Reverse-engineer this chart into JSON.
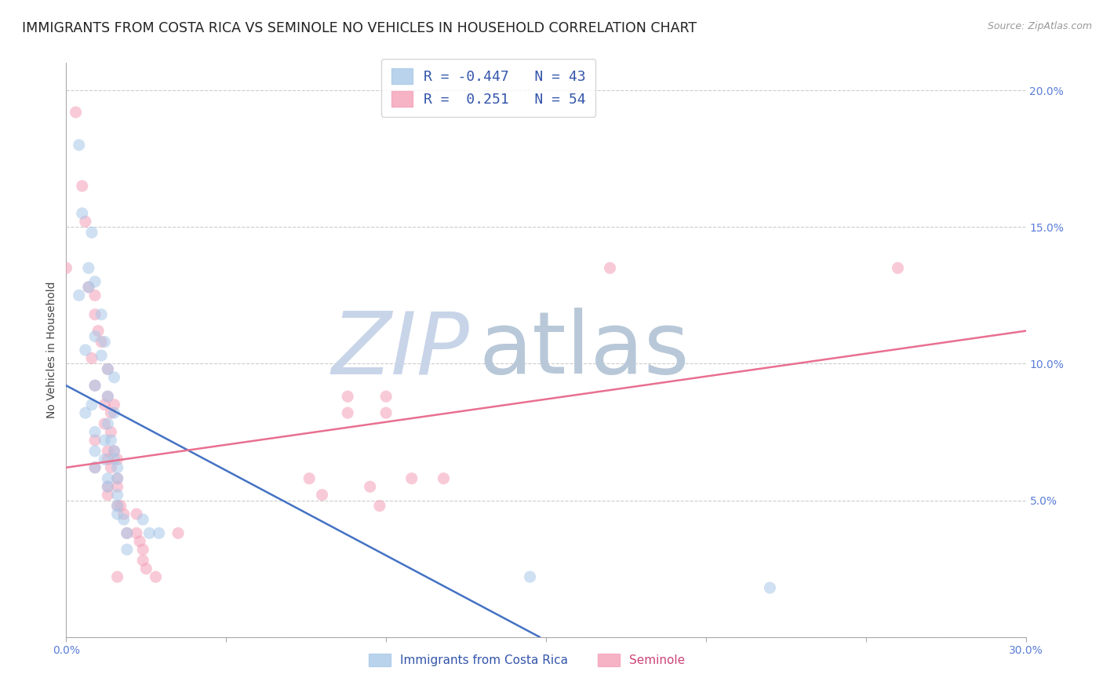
{
  "title": "IMMIGRANTS FROM COSTA RICA VS SEMINOLE NO VEHICLES IN HOUSEHOLD CORRELATION CHART",
  "source": "Source: ZipAtlas.com",
  "ylabel": "No Vehicles in Household",
  "xlim": [
    0.0,
    0.3
  ],
  "ylim": [
    0.0,
    0.21
  ],
  "xticks": [
    0.0,
    0.05,
    0.1,
    0.15,
    0.2,
    0.25,
    0.3
  ],
  "xtick_labels": [
    "0.0%",
    "",
    "",
    "",
    "",
    "",
    "30.0%"
  ],
  "yticks_right": [
    0.0,
    0.05,
    0.1,
    0.15,
    0.2
  ],
  "ytick_right_labels": [
    "",
    "5.0%",
    "10.0%",
    "15.0%",
    "20.0%"
  ],
  "legend_entries": [
    {
      "label": "R = -0.447   N = 43",
      "color": "#a8c8e8"
    },
    {
      "label": "R =  0.251   N = 54",
      "color": "#f4a0b8"
    }
  ],
  "blue_scatter": [
    [
      0.004,
      0.18
    ],
    [
      0.005,
      0.155
    ],
    [
      0.008,
      0.148
    ],
    [
      0.007,
      0.135
    ],
    [
      0.009,
      0.13
    ],
    [
      0.007,
      0.128
    ],
    [
      0.004,
      0.125
    ],
    [
      0.011,
      0.118
    ],
    [
      0.009,
      0.11
    ],
    [
      0.012,
      0.108
    ],
    [
      0.006,
      0.105
    ],
    [
      0.011,
      0.103
    ],
    [
      0.013,
      0.098
    ],
    [
      0.015,
      0.095
    ],
    [
      0.009,
      0.092
    ],
    [
      0.013,
      0.088
    ],
    [
      0.008,
      0.085
    ],
    [
      0.015,
      0.082
    ],
    [
      0.006,
      0.082
    ],
    [
      0.013,
      0.078
    ],
    [
      0.009,
      0.075
    ],
    [
      0.014,
      0.072
    ],
    [
      0.012,
      0.072
    ],
    [
      0.015,
      0.068
    ],
    [
      0.009,
      0.068
    ],
    [
      0.015,
      0.065
    ],
    [
      0.012,
      0.065
    ],
    [
      0.016,
      0.062
    ],
    [
      0.009,
      0.062
    ],
    [
      0.013,
      0.058
    ],
    [
      0.016,
      0.058
    ],
    [
      0.013,
      0.055
    ],
    [
      0.016,
      0.052
    ],
    [
      0.016,
      0.048
    ],
    [
      0.016,
      0.045
    ],
    [
      0.018,
      0.043
    ],
    [
      0.019,
      0.038
    ],
    [
      0.019,
      0.032
    ],
    [
      0.024,
      0.043
    ],
    [
      0.026,
      0.038
    ],
    [
      0.029,
      0.038
    ],
    [
      0.145,
      0.022
    ],
    [
      0.22,
      0.018
    ]
  ],
  "pink_scatter": [
    [
      0.0,
      0.135
    ],
    [
      0.003,
      0.192
    ],
    [
      0.005,
      0.165
    ],
    [
      0.006,
      0.152
    ],
    [
      0.007,
      0.128
    ],
    [
      0.009,
      0.125
    ],
    [
      0.009,
      0.118
    ],
    [
      0.01,
      0.112
    ],
    [
      0.011,
      0.108
    ],
    [
      0.008,
      0.102
    ],
    [
      0.013,
      0.098
    ],
    [
      0.009,
      0.092
    ],
    [
      0.013,
      0.088
    ],
    [
      0.015,
      0.085
    ],
    [
      0.012,
      0.085
    ],
    [
      0.014,
      0.082
    ],
    [
      0.012,
      0.078
    ],
    [
      0.014,
      0.075
    ],
    [
      0.009,
      0.072
    ],
    [
      0.013,
      0.068
    ],
    [
      0.015,
      0.068
    ],
    [
      0.013,
      0.065
    ],
    [
      0.016,
      0.065
    ],
    [
      0.009,
      0.062
    ],
    [
      0.014,
      0.062
    ],
    [
      0.016,
      0.058
    ],
    [
      0.013,
      0.055
    ],
    [
      0.016,
      0.055
    ],
    [
      0.013,
      0.052
    ],
    [
      0.016,
      0.048
    ],
    [
      0.017,
      0.048
    ],
    [
      0.018,
      0.045
    ],
    [
      0.022,
      0.045
    ],
    [
      0.019,
      0.038
    ],
    [
      0.022,
      0.038
    ],
    [
      0.023,
      0.035
    ],
    [
      0.024,
      0.032
    ],
    [
      0.024,
      0.028
    ],
    [
      0.025,
      0.025
    ],
    [
      0.016,
      0.022
    ],
    [
      0.028,
      0.022
    ],
    [
      0.035,
      0.038
    ],
    [
      0.076,
      0.058
    ],
    [
      0.08,
      0.052
    ],
    [
      0.088,
      0.088
    ],
    [
      0.088,
      0.082
    ],
    [
      0.095,
      0.055
    ],
    [
      0.098,
      0.048
    ],
    [
      0.1,
      0.088
    ],
    [
      0.1,
      0.082
    ],
    [
      0.108,
      0.058
    ],
    [
      0.118,
      0.058
    ],
    [
      0.17,
      0.135
    ],
    [
      0.26,
      0.135
    ]
  ],
  "blue_line_x": [
    0.0,
    0.148
  ],
  "blue_line_y": [
    0.092,
    0.0
  ],
  "pink_line_x": [
    0.0,
    0.3
  ],
  "pink_line_y": [
    0.062,
    0.112
  ],
  "blue_color": "#a8c8e8",
  "pink_color": "#f4a0b8",
  "blue_line_color": "#4472c4",
  "pink_line_color": "#e87090",
  "grid_color": "#cccccc",
  "background_color": "#ffffff",
  "watermark_zip": "ZIP",
  "watermark_atlas": "atlas",
  "watermark_color_zip": "#c8d4e8",
  "watermark_color_atlas": "#b8c8d8",
  "title_fontsize": 12.5,
  "axis_label_fontsize": 10,
  "tick_fontsize": 10,
  "legend_fontsize": 13,
  "scatter_size": 120,
  "scatter_alpha": 0.55,
  "legend_label_blue": "Immigrants from Costa Rica",
  "legend_label_pink": "Seminole"
}
